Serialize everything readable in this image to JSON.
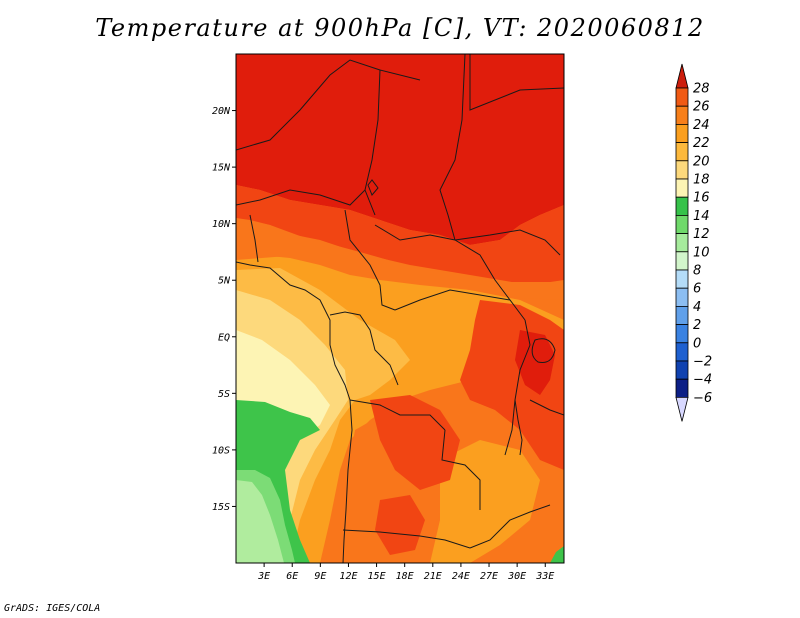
{
  "title": "Temperature at 900hPa [C], VT: 2020060812",
  "credit": "GrADS: IGES/COLA",
  "map": {
    "region": "Central Africa",
    "variable": "Temperature at 900hPa",
    "units": "C",
    "lat_range": [
      -20,
      25
    ],
    "lon_range": [
      0,
      35
    ],
    "lat_ticks": [
      "20N",
      "15N",
      "10N",
      "5N",
      "EQ",
      "5S",
      "10S",
      "15S"
    ],
    "lat_tick_values": [
      20,
      15,
      10,
      5,
      0,
      -5,
      -10,
      -15
    ],
    "lon_ticks": [
      "3E",
      "6E",
      "9E",
      "12E",
      "15E",
      "18E",
      "21E",
      "24E",
      "27E",
      "30E",
      "33E"
    ],
    "lon_tick_values": [
      3,
      6,
      9,
      12,
      15,
      18,
      21,
      24,
      27,
      30,
      33
    ]
  },
  "colorbar": {
    "labels": [
      "28",
      "26",
      "24",
      "22",
      "20",
      "18",
      "16",
      "14",
      "12",
      "10",
      "8",
      "6",
      "4",
      "2",
      "0",
      "−2",
      "−4",
      "−6"
    ],
    "colors": [
      "#e61e0f",
      "#f05a14",
      "#f77f1a",
      "#fb9f1e",
      "#fdb93c",
      "#fdd97c",
      "#fdf4b4",
      "#36c24a",
      "#6fd96a",
      "#a6eb9c",
      "#d2f5cb",
      "#b4dcf8",
      "#8cbef2",
      "#60a0ea",
      "#3a82e2",
      "#1e60d0",
      "#1042b0",
      "#0c1f86",
      "#06085a"
    ],
    "top_arrow_color": "#cc1d0c",
    "bottom_arrow_color": "#d8d8ff"
  },
  "field": {
    "colors": {
      "c28": "#e01d0c",
      "c26": "#f14513",
      "c24": "#f9761b",
      "c22": "#fb9f1f",
      "c20": "#fdbb45",
      "c18": "#fdd97c",
      "c16": "#fdf4b4",
      "green_dark": "#3ec44a",
      "green_mid": "#7cdc76",
      "green_light": "#b0ec9e"
    }
  }
}
